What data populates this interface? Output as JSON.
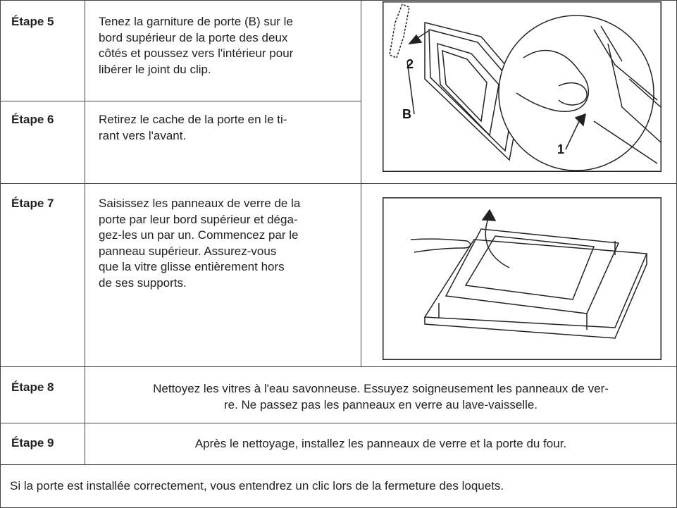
{
  "steps": [
    {
      "label": "Étape 5",
      "lines": [
        "Tenez la garniture de porte (B) sur le",
        "bord supérieur de la porte des deux",
        "côtés et poussez vers l'intérieur pour",
        "libérer le joint du clip."
      ]
    },
    {
      "label": "Étape 6",
      "lines": [
        "Retirez le cache de la porte en le ti-",
        "rant vers l'avant."
      ]
    },
    {
      "label": "Étape 7",
      "lines": [
        "Saisissez les panneaux de verre de la",
        "porte par leur bord supérieur et déga-",
        "gez-les un par un. Commencez par le",
        "panneau supérieur. Assurez-vous",
        "que la vitre glisse entièrement hors",
        "de ses supports."
      ]
    },
    {
      "label": "Étape 8",
      "lines": [
        "Nettoyez les vitres à l'eau savonneuse. Essuyez soigneusement les panneaux de ver-",
        "re. Ne passez pas les panneaux en verre au lave-vaisselle."
      ]
    },
    {
      "label": "Étape 9",
      "lines": [
        "Après le nettoyage, installez les panneaux de verre et la porte du four."
      ]
    }
  ],
  "figures": [
    {
      "labels": [
        "2",
        "B",
        "1"
      ]
    }
  ],
  "note": "Si la porte est installée correctement, vous entendrez un clic lors de la fermeture des loquets."
}
